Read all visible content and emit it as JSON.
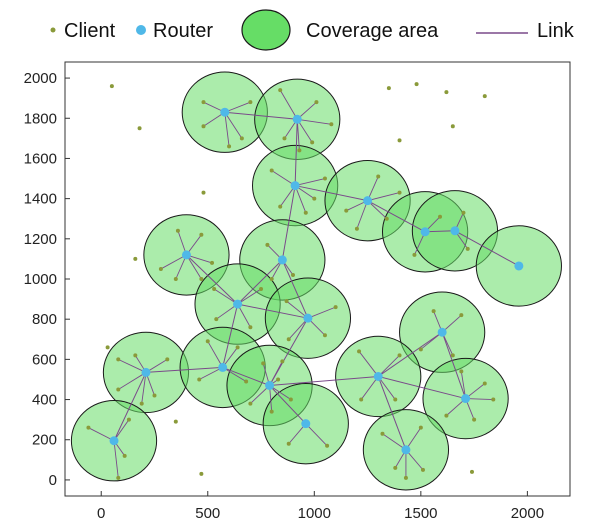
{
  "chart_data": {
    "type": "scatter",
    "title": "",
    "xlabel": "",
    "ylabel": "",
    "xlim": [
      -170,
      2200
    ],
    "ylim": [
      -80,
      2080
    ],
    "xticks": [
      0,
      500,
      1000,
      1500,
      2000
    ],
    "yticks": [
      0,
      200,
      400,
      600,
      800,
      1000,
      1200,
      1400,
      1600,
      1800,
      2000
    ],
    "coverage_radius": 200,
    "legend": {
      "placement": "top",
      "entries": [
        {
          "key": "client",
          "label": "Client"
        },
        {
          "key": "router",
          "label": "Router"
        },
        {
          "key": "coverage",
          "label": "Coverage area"
        },
        {
          "key": "link",
          "label": "Link"
        }
      ]
    },
    "colors": {
      "client": "#8a9a3a",
      "router": "#4fb8e8",
      "coverage_fill": "#66dd66",
      "coverage_stroke": "#1a1a1a",
      "link": "#7a4a8a"
    },
    "routers": [
      {
        "x": 580,
        "y": 1830
      },
      {
        "x": 920,
        "y": 1795
      },
      {
        "x": 910,
        "y": 1465
      },
      {
        "x": 1250,
        "y": 1390
      },
      {
        "x": 1520,
        "y": 1235
      },
      {
        "x": 1660,
        "y": 1240
      },
      {
        "x": 1960,
        "y": 1065
      },
      {
        "x": 400,
        "y": 1120
      },
      {
        "x": 850,
        "y": 1095
      },
      {
        "x": 640,
        "y": 875
      },
      {
        "x": 970,
        "y": 805
      },
      {
        "x": 1600,
        "y": 735
      },
      {
        "x": 210,
        "y": 535
      },
      {
        "x": 570,
        "y": 560
      },
      {
        "x": 790,
        "y": 470
      },
      {
        "x": 1300,
        "y": 515
      },
      {
        "x": 1710,
        "y": 405
      },
      {
        "x": 960,
        "y": 280
      },
      {
        "x": 60,
        "y": 195
      },
      {
        "x": 1430,
        "y": 150
      }
    ],
    "router_links": [
      [
        0,
        1
      ],
      [
        1,
        2
      ],
      [
        2,
        3
      ],
      [
        3,
        4
      ],
      [
        4,
        5
      ],
      [
        5,
        6
      ],
      [
        2,
        8
      ],
      [
        8,
        9
      ],
      [
        7,
        9
      ],
      [
        9,
        10
      ],
      [
        8,
        10
      ],
      [
        9,
        13
      ],
      [
        12,
        13
      ],
      [
        13,
        14
      ],
      [
        14,
        17
      ],
      [
        14,
        15
      ],
      [
        15,
        11
      ],
      [
        15,
        16
      ],
      [
        16,
        11
      ],
      [
        15,
        19
      ],
      [
        12,
        18
      ],
      [
        10,
        14
      ]
    ],
    "clients": [
      {
        "x": 480,
        "y": 1880,
        "r": 0
      },
      {
        "x": 700,
        "y": 1880,
        "r": 0
      },
      {
        "x": 480,
        "y": 1760,
        "r": 0
      },
      {
        "x": 660,
        "y": 1700,
        "r": 0
      },
      {
        "x": 600,
        "y": 1660,
        "r": 0
      },
      {
        "x": 840,
        "y": 1940,
        "r": 1
      },
      {
        "x": 1010,
        "y": 1880,
        "r": 1
      },
      {
        "x": 1080,
        "y": 1770,
        "r": 1
      },
      {
        "x": 990,
        "y": 1680,
        "r": 1
      },
      {
        "x": 860,
        "y": 1700,
        "r": 1
      },
      {
        "x": 930,
        "y": 1640,
        "r": 1
      },
      {
        "x": 800,
        "y": 1540,
        "r": 2
      },
      {
        "x": 840,
        "y": 1360,
        "r": 2
      },
      {
        "x": 960,
        "y": 1330,
        "r": 2
      },
      {
        "x": 1050,
        "y": 1500,
        "r": 2
      },
      {
        "x": 1000,
        "y": 1400,
        "r": 2
      },
      {
        "x": 1300,
        "y": 1510,
        "r": 3
      },
      {
        "x": 1150,
        "y": 1340,
        "r": 3
      },
      {
        "x": 1200,
        "y": 1250,
        "r": 3
      },
      {
        "x": 1340,
        "y": 1300,
        "r": 3
      },
      {
        "x": 1400,
        "y": 1430,
        "r": 3
      },
      {
        "x": 1470,
        "y": 1120,
        "r": 4
      },
      {
        "x": 1590,
        "y": 1310,
        "r": 4
      },
      {
        "x": 1700,
        "y": 1330,
        "r": 5
      },
      {
        "x": 1720,
        "y": 1150,
        "r": 5
      },
      {
        "x": 360,
        "y": 1240,
        "r": 7
      },
      {
        "x": 470,
        "y": 1220,
        "r": 7
      },
      {
        "x": 280,
        "y": 1050,
        "r": 7
      },
      {
        "x": 350,
        "y": 1000,
        "r": 7
      },
      {
        "x": 470,
        "y": 1000,
        "r": 7
      },
      {
        "x": 520,
        "y": 1080,
        "r": 7
      },
      {
        "x": 780,
        "y": 1170,
        "r": 8
      },
      {
        "x": 900,
        "y": 1020,
        "r": 8
      },
      {
        "x": 800,
        "y": 1000,
        "r": 8
      },
      {
        "x": 530,
        "y": 950,
        "r": 9
      },
      {
        "x": 540,
        "y": 800,
        "r": 9
      },
      {
        "x": 700,
        "y": 760,
        "r": 9
      },
      {
        "x": 750,
        "y": 950,
        "r": 9
      },
      {
        "x": 870,
        "y": 890,
        "r": 10
      },
      {
        "x": 1100,
        "y": 860,
        "r": 10
      },
      {
        "x": 1050,
        "y": 720,
        "r": 10
      },
      {
        "x": 880,
        "y": 700,
        "r": 10
      },
      {
        "x": 1560,
        "y": 840,
        "r": 11
      },
      {
        "x": 1690,
        "y": 820,
        "r": 11
      },
      {
        "x": 1500,
        "y": 650,
        "r": 11
      },
      {
        "x": 1650,
        "y": 620,
        "r": 11
      },
      {
        "x": 80,
        "y": 600,
        "r": 12
      },
      {
        "x": 160,
        "y": 620,
        "r": 12
      },
      {
        "x": 310,
        "y": 600,
        "r": 12
      },
      {
        "x": 80,
        "y": 450,
        "r": 12
      },
      {
        "x": 250,
        "y": 420,
        "r": 12
      },
      {
        "x": 190,
        "y": 380,
        "r": 12
      },
      {
        "x": 500,
        "y": 690,
        "r": 13
      },
      {
        "x": 640,
        "y": 660,
        "r": 13
      },
      {
        "x": 460,
        "y": 500,
        "r": 13
      },
      {
        "x": 680,
        "y": 490,
        "r": 13
      },
      {
        "x": 760,
        "y": 580,
        "r": 14
      },
      {
        "x": 850,
        "y": 590,
        "r": 14
      },
      {
        "x": 700,
        "y": 380,
        "r": 14
      },
      {
        "x": 800,
        "y": 340,
        "r": 14
      },
      {
        "x": 890,
        "y": 400,
        "r": 14
      },
      {
        "x": 830,
        "y": 500,
        "r": 14
      },
      {
        "x": 1210,
        "y": 640,
        "r": 15
      },
      {
        "x": 1400,
        "y": 620,
        "r": 15
      },
      {
        "x": 1220,
        "y": 400,
        "r": 15
      },
      {
        "x": 1380,
        "y": 400,
        "r": 15
      },
      {
        "x": 1690,
        "y": 540,
        "r": 16
      },
      {
        "x": 1800,
        "y": 480,
        "r": 16
      },
      {
        "x": 1840,
        "y": 400,
        "r": 16
      },
      {
        "x": 1620,
        "y": 320,
        "r": 16
      },
      {
        "x": 1750,
        "y": 300,
        "r": 16
      },
      {
        "x": 880,
        "y": 180,
        "r": 17
      },
      {
        "x": 1060,
        "y": 170,
        "r": 17
      },
      {
        "x": -60,
        "y": 260,
        "r": 18
      },
      {
        "x": 130,
        "y": 300,
        "r": 18
      },
      {
        "x": 110,
        "y": 120,
        "r": 18
      },
      {
        "x": 80,
        "y": 10,
        "r": 18
      },
      {
        "x": 1320,
        "y": 230,
        "r": 19
      },
      {
        "x": 1500,
        "y": 260,
        "r": 19
      },
      {
        "x": 1380,
        "y": 60,
        "r": 19
      },
      {
        "x": 1510,
        "y": 50,
        "r": 19
      },
      {
        "x": 1430,
        "y": 10,
        "r": 19
      },
      {
        "x": 50,
        "y": 1960,
        "r": null
      },
      {
        "x": 180,
        "y": 1750,
        "r": null
      },
      {
        "x": 480,
        "y": 1430,
        "r": null
      },
      {
        "x": 160,
        "y": 1100,
        "r": null
      },
      {
        "x": 1350,
        "y": 1950,
        "r": null
      },
      {
        "x": 1480,
        "y": 1970,
        "r": null
      },
      {
        "x": 1620,
        "y": 1930,
        "r": null
      },
      {
        "x": 1800,
        "y": 1910,
        "r": null
      },
      {
        "x": 1650,
        "y": 1760,
        "r": null
      },
      {
        "x": 1400,
        "y": 1690,
        "r": null
      },
      {
        "x": 30,
        "y": 660,
        "r": null
      },
      {
        "x": 350,
        "y": 290,
        "r": null
      },
      {
        "x": 470,
        "y": 30,
        "r": null
      },
      {
        "x": 1740,
        "y": 40,
        "r": null
      }
    ]
  }
}
